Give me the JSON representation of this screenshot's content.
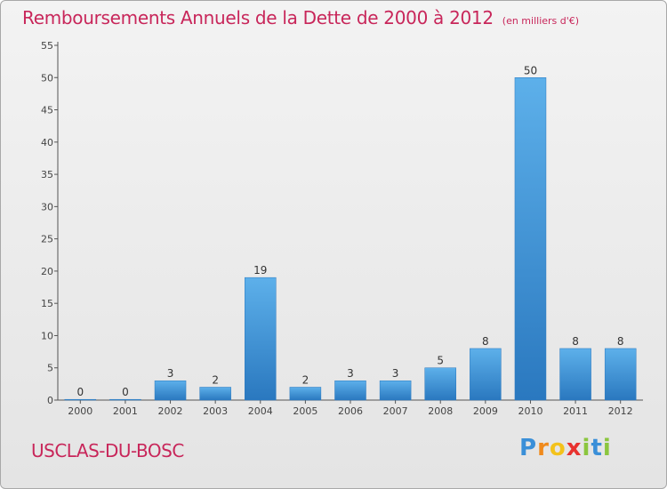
{
  "title": "Remboursements Annuels de la Dette de 2000 à 2012",
  "unit_note": "(en milliers d'€)",
  "commune": "USCLAS-DU-BOSC",
  "logo": {
    "letters": [
      "P",
      "r",
      "o",
      "x",
      "i",
      "t",
      "i"
    ],
    "colors": [
      "#3a8fd8",
      "#f08a1c",
      "#f3c21b",
      "#e8322f",
      "#8bc63f",
      "#3a8fd8",
      "#8bc63f"
    ]
  },
  "colors": {
    "bar": "#3d99dd",
    "bar_light": "#5db0ea",
    "bar_dark": "#2a78bf",
    "title": "#c8265a",
    "axis": "#555555"
  },
  "chart_data": {
    "type": "bar",
    "categories": [
      "2000",
      "2001",
      "2002",
      "2003",
      "2004",
      "2005",
      "2006",
      "2007",
      "2008",
      "2009",
      "2010",
      "2011",
      "2012"
    ],
    "values": [
      0,
      0,
      3,
      2,
      19,
      2,
      3,
      3,
      5,
      8,
      50,
      8,
      8
    ],
    "ylim": [
      0,
      55
    ],
    "yticks": [
      0,
      5,
      10,
      15,
      20,
      25,
      30,
      35,
      40,
      45,
      50,
      55
    ],
    "xlabel": "",
    "ylabel": "",
    "grid": false
  }
}
